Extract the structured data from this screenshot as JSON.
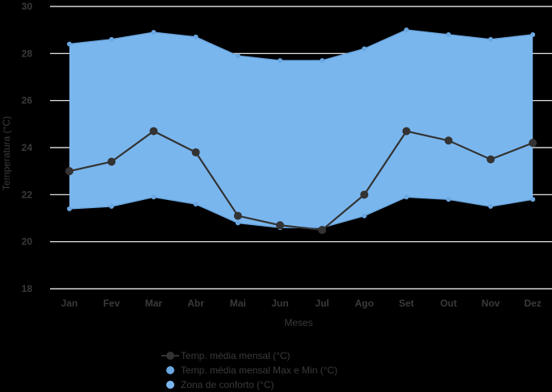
{
  "chart_data": {
    "type": "line",
    "categories": [
      "Jan",
      "Fev",
      "Mar",
      "Abr",
      "Mai",
      "Jun",
      "Jul",
      "Ago",
      "Set",
      "Out",
      "Nov",
      "Dez"
    ],
    "series": [
      {
        "name": "Temp. média mensal (°C)",
        "type": "line",
        "color": "#333333",
        "values": [
          23.0,
          23.4,
          24.7,
          23.8,
          21.1,
          20.7,
          20.5,
          22.0,
          24.7,
          24.3,
          23.5,
          24.2
        ]
      },
      {
        "name": "Temp. média mensal Max e Min (°C)",
        "type": "range",
        "color": "#6ba7e0",
        "max": [
          28.4,
          28.6,
          28.9,
          28.7,
          27.9,
          27.7,
          27.7,
          28.2,
          29.0,
          28.8,
          28.6,
          28.8
        ],
        "min": [
          21.4,
          21.5,
          21.9,
          21.6,
          20.8,
          20.6,
          20.6,
          21.1,
          21.9,
          21.8,
          21.5,
          21.8
        ]
      },
      {
        "name": "Zona de conforto (°C)",
        "type": "area",
        "color": "#7ab6ee"
      }
    ],
    "xlabel": "Meses",
    "ylabel": "Temperatura (°C)",
    "ylim": [
      18,
      30
    ],
    "yticks": [
      "18",
      "20",
      "22",
      "24",
      "26",
      "28",
      "30"
    ],
    "grid": true,
    "legend_position": "bottom"
  },
  "colors": {
    "background": "#000000",
    "grid": "#ffffff",
    "area_fill": "#7ab6ee",
    "area_edge": "#6ba7e0",
    "line": "#333333",
    "text": "#3a3a3a"
  }
}
